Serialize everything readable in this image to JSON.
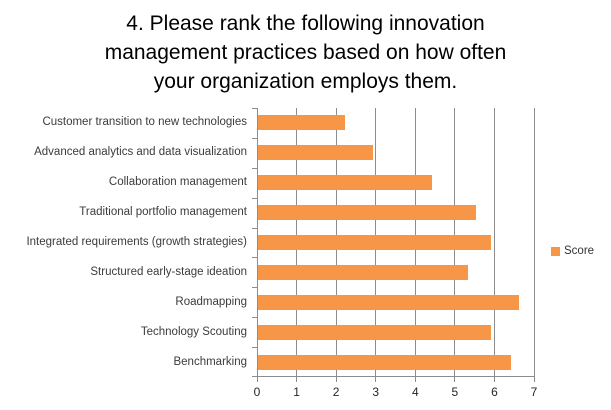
{
  "chart_data": {
    "type": "bar",
    "orientation": "horizontal",
    "title": "4. Please rank the following innovation management practices based on how often your organization employs them.",
    "title_lines": [
      "4. Please rank the following innovation",
      "management practices based on how often",
      "your organization employs them."
    ],
    "categories": [
      "Customer transition to new technologies",
      "Advanced analytics and data visualization",
      "Collaboration management",
      "Traditional portfolio management",
      "Integrated requirements (growth strategies)",
      "Structured early-stage ideation",
      "Roadmapping",
      "Technology Scouting",
      "Benchmarking"
    ],
    "series": [
      {
        "name": "Score",
        "values": [
          2.2,
          2.9,
          4.4,
          5.5,
          5.9,
          5.3,
          6.6,
          5.9,
          6.4
        ]
      }
    ],
    "xlabel": "",
    "ylabel": "",
    "xlim": [
      0,
      7
    ],
    "xticks": [
      0,
      1,
      2,
      3,
      4,
      5,
      6,
      7
    ],
    "grid": "vertical-gridlines-on",
    "legend_position": "right",
    "colors": {
      "bar": "#F79646",
      "gridline": "#8C8C8C",
      "axis": "#8C8C8C",
      "title_text": "#000000",
      "category_text": "#3B3B3B",
      "tick_text": "#262626",
      "background": "#FFFFFF"
    }
  }
}
